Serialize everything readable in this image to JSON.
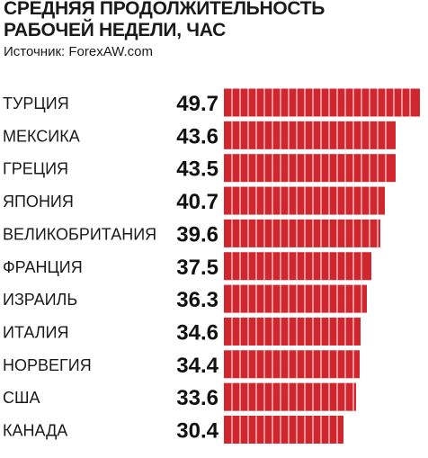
{
  "header": {
    "title_line1": "СРЕДНЯЯ ПРОДОЛЖИТЕЛЬНОСТЬ",
    "title_line2": "РАБОЧЕЙ НЕДЕЛИ, ЧАС",
    "source": "Источник: ForexAW.com"
  },
  "chart_data": {
    "type": "bar",
    "orientation": "horizontal",
    "title": "СРЕДНЯЯ ПРОДОЛЖИТЕЛЬНОСТЬ РАБОЧЕЙ НЕДЕЛИ, ЧАС",
    "source": "Источник: ForexAW.com",
    "categories": [
      "ТУРЦИЯ",
      "МЕКСИКА",
      "ГРЕЦИЯ",
      "ЯПОНИЯ",
      "ВЕЛИКОБРИТАНИЯ",
      "ФРАНЦИЯ",
      "ИЗРАИЛЬ",
      "ИТАЛИЯ",
      "НОРВЕГИЯ",
      "США",
      "КАНАДА"
    ],
    "values": [
      49.7,
      43.6,
      43.5,
      40.7,
      39.6,
      37.5,
      36.3,
      34.6,
      34.4,
      33.6,
      30.4
    ],
    "value_labels": [
      "49.7",
      "43.6",
      "43.5",
      "40.7",
      "39.6",
      "37.5",
      "36.3",
      "34.6",
      "34.4",
      "33.6",
      "30.4"
    ],
    "xlim": [
      0,
      49.7
    ],
    "grid": false,
    "legend": "none",
    "bar_color": "#d0272f",
    "bar_segment_divider_color": "#ffffff"
  }
}
